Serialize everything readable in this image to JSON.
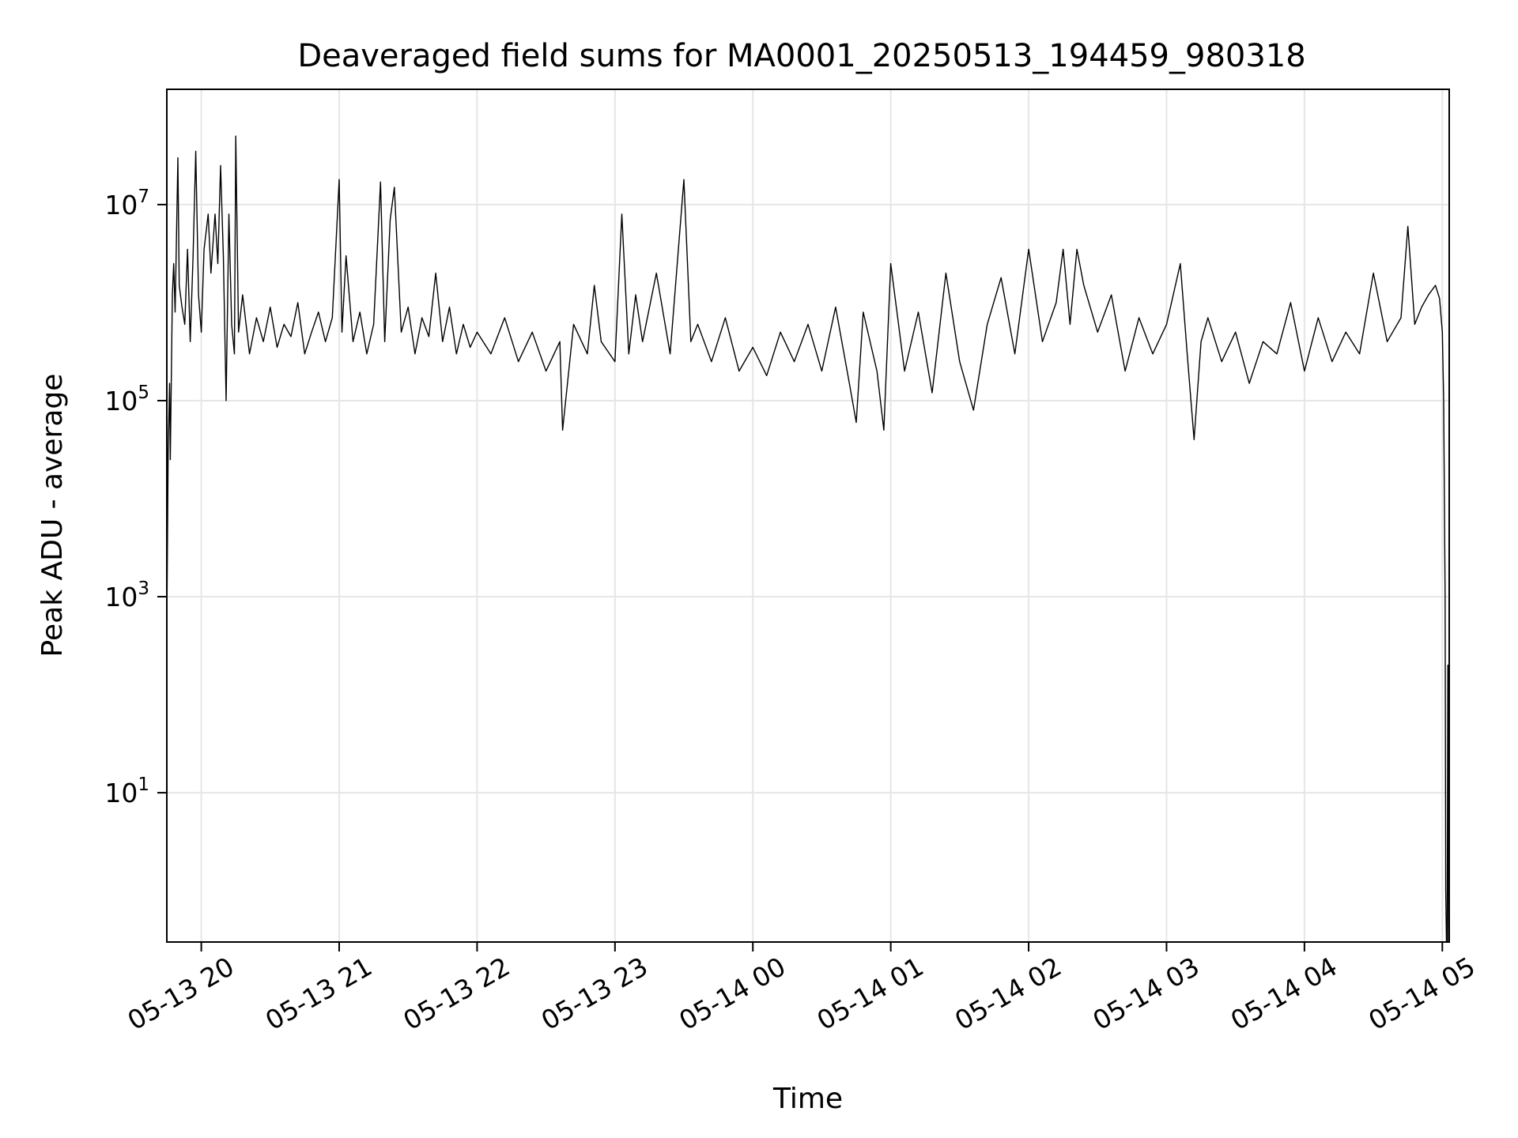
{
  "chart_data": {
    "type": "line",
    "title": "Deaveraged field sums for MA0001_20250513_194459_980318",
    "xlabel": "Time",
    "ylabel": "Peak ADU - average",
    "yscale": "log",
    "ylim": [
      0.3,
      150000000
    ],
    "xlim_hours": [
      -0.25,
      9.05
    ],
    "grid": true,
    "line_color": "#000000",
    "grid_color": "#e6e6e6",
    "x_ticks": [
      {
        "hour": 0,
        "label": "05-13 20"
      },
      {
        "hour": 1,
        "label": "05-13 21"
      },
      {
        "hour": 2,
        "label": "05-13 22"
      },
      {
        "hour": 3,
        "label": "05-13 23"
      },
      {
        "hour": 4,
        "label": "05-14 00"
      },
      {
        "hour": 5,
        "label": "05-14 01"
      },
      {
        "hour": 6,
        "label": "05-14 02"
      },
      {
        "hour": 7,
        "label": "05-14 03"
      },
      {
        "hour": 8,
        "label": "05-14 04"
      },
      {
        "hour": 9,
        "label": "05-14 05"
      }
    ],
    "y_ticks": [
      {
        "value": 10,
        "base": "10",
        "exp": "1"
      },
      {
        "value": 1000,
        "base": "10",
        "exp": "3"
      },
      {
        "value": 100000,
        "base": "10",
        "exp": "5"
      },
      {
        "value": 10000000,
        "base": "10",
        "exp": "7"
      }
    ],
    "series": [
      {
        "name": "deaveraged field sum",
        "points": [
          [
            -0.25,
            500
          ],
          [
            -0.24,
            30000
          ],
          [
            -0.23,
            150000
          ],
          [
            -0.225,
            25000
          ],
          [
            -0.21,
            1200000
          ],
          [
            -0.2,
            2500000
          ],
          [
            -0.19,
            800000
          ],
          [
            -0.17,
            30000000
          ],
          [
            -0.16,
            1500000
          ],
          [
            -0.14,
            900000
          ],
          [
            -0.12,
            600000
          ],
          [
            -0.1,
            3500000
          ],
          [
            -0.08,
            400000
          ],
          [
            -0.06,
            2800000
          ],
          [
            -0.04,
            35000000
          ],
          [
            -0.02,
            1200000
          ],
          [
            0.0,
            500000
          ],
          [
            0.02,
            3500000
          ],
          [
            0.05,
            8000000
          ],
          [
            0.07,
            2000000
          ],
          [
            0.1,
            8000000
          ],
          [
            0.12,
            2500000
          ],
          [
            0.14,
            25000000
          ],
          [
            0.16,
            3000000
          ],
          [
            0.18,
            100000
          ],
          [
            0.2,
            8000000
          ],
          [
            0.22,
            600000
          ],
          [
            0.24,
            300000
          ],
          [
            0.25,
            50000000
          ],
          [
            0.27,
            500000
          ],
          [
            0.3,
            1200000
          ],
          [
            0.35,
            300000
          ],
          [
            0.4,
            700000
          ],
          [
            0.45,
            400000
          ],
          [
            0.5,
            900000
          ],
          [
            0.55,
            350000
          ],
          [
            0.6,
            600000
          ],
          [
            0.65,
            450000
          ],
          [
            0.7,
            1000000
          ],
          [
            0.75,
            300000
          ],
          [
            0.8,
            500000
          ],
          [
            0.85,
            800000
          ],
          [
            0.9,
            400000
          ],
          [
            0.95,
            700000
          ],
          [
            1.0,
            18000000
          ],
          [
            1.02,
            500000
          ],
          [
            1.05,
            3000000
          ],
          [
            1.1,
            400000
          ],
          [
            1.15,
            800000
          ],
          [
            1.2,
            300000
          ],
          [
            1.25,
            600000
          ],
          [
            1.3,
            17000000
          ],
          [
            1.33,
            400000
          ],
          [
            1.37,
            7000000
          ],
          [
            1.4,
            15000000
          ],
          [
            1.45,
            500000
          ],
          [
            1.5,
            900000
          ],
          [
            1.55,
            300000
          ],
          [
            1.6,
            700000
          ],
          [
            1.65,
            450000
          ],
          [
            1.7,
            2000000
          ],
          [
            1.75,
            400000
          ],
          [
            1.8,
            900000
          ],
          [
            1.85,
            300000
          ],
          [
            1.9,
            600000
          ],
          [
            1.95,
            350000
          ],
          [
            2.0,
            500000
          ],
          [
            2.1,
            300000
          ],
          [
            2.2,
            700000
          ],
          [
            2.3,
            250000
          ],
          [
            2.4,
            500000
          ],
          [
            2.5,
            200000
          ],
          [
            2.6,
            400000
          ],
          [
            2.62,
            50000
          ],
          [
            2.7,
            600000
          ],
          [
            2.8,
            300000
          ],
          [
            2.85,
            1500000
          ],
          [
            2.9,
            400000
          ],
          [
            3.0,
            250000
          ],
          [
            3.05,
            8000000
          ],
          [
            3.1,
            300000
          ],
          [
            3.15,
            1200000
          ],
          [
            3.2,
            400000
          ],
          [
            3.3,
            2000000
          ],
          [
            3.4,
            300000
          ],
          [
            3.5,
            18000000
          ],
          [
            3.55,
            400000
          ],
          [
            3.6,
            600000
          ],
          [
            3.7,
            250000
          ],
          [
            3.8,
            700000
          ],
          [
            3.9,
            200000
          ],
          [
            4.0,
            350000
          ],
          [
            4.1,
            180000
          ],
          [
            4.2,
            500000
          ],
          [
            4.3,
            250000
          ],
          [
            4.4,
            600000
          ],
          [
            4.5,
            200000
          ],
          [
            4.6,
            900000
          ],
          [
            4.7,
            150000
          ],
          [
            4.75,
            60000
          ],
          [
            4.8,
            800000
          ],
          [
            4.9,
            200000
          ],
          [
            4.95,
            50000
          ],
          [
            5.0,
            2500000
          ],
          [
            5.1,
            200000
          ],
          [
            5.2,
            800000
          ],
          [
            5.3,
            120000
          ],
          [
            5.4,
            2000000
          ],
          [
            5.5,
            250000
          ],
          [
            5.6,
            80000
          ],
          [
            5.7,
            600000
          ],
          [
            5.8,
            1800000
          ],
          [
            5.9,
            300000
          ],
          [
            6.0,
            3500000
          ],
          [
            6.1,
            400000
          ],
          [
            6.2,
            1000000
          ],
          [
            6.25,
            3500000
          ],
          [
            6.3,
            600000
          ],
          [
            6.35,
            3500000
          ],
          [
            6.4,
            1500000
          ],
          [
            6.5,
            500000
          ],
          [
            6.6,
            1200000
          ],
          [
            6.7,
            200000
          ],
          [
            6.8,
            700000
          ],
          [
            6.9,
            300000
          ],
          [
            7.0,
            600000
          ],
          [
            7.1,
            2500000
          ],
          [
            7.15,
            300000
          ],
          [
            7.2,
            40000
          ],
          [
            7.25,
            400000
          ],
          [
            7.3,
            700000
          ],
          [
            7.4,
            250000
          ],
          [
            7.5,
            500000
          ],
          [
            7.6,
            150000
          ],
          [
            7.7,
            400000
          ],
          [
            7.8,
            300000
          ],
          [
            7.9,
            1000000
          ],
          [
            8.0,
            200000
          ],
          [
            8.1,
            700000
          ],
          [
            8.2,
            250000
          ],
          [
            8.3,
            500000
          ],
          [
            8.4,
            300000
          ],
          [
            8.5,
            2000000
          ],
          [
            8.6,
            400000
          ],
          [
            8.7,
            700000
          ],
          [
            8.75,
            6000000
          ],
          [
            8.8,
            600000
          ],
          [
            8.85,
            900000
          ],
          [
            8.9,
            1200000
          ],
          [
            8.95,
            1500000
          ],
          [
            8.98,
            1100000
          ],
          [
            9.0,
            500000
          ],
          [
            9.01,
            100000
          ],
          [
            9.02,
            1000
          ],
          [
            9.025,
            1
          ],
          [
            9.03,
            0.3
          ],
          [
            9.035,
            0.3
          ],
          [
            9.04,
            200
          ],
          [
            9.045,
            0.3
          ]
        ]
      }
    ]
  }
}
